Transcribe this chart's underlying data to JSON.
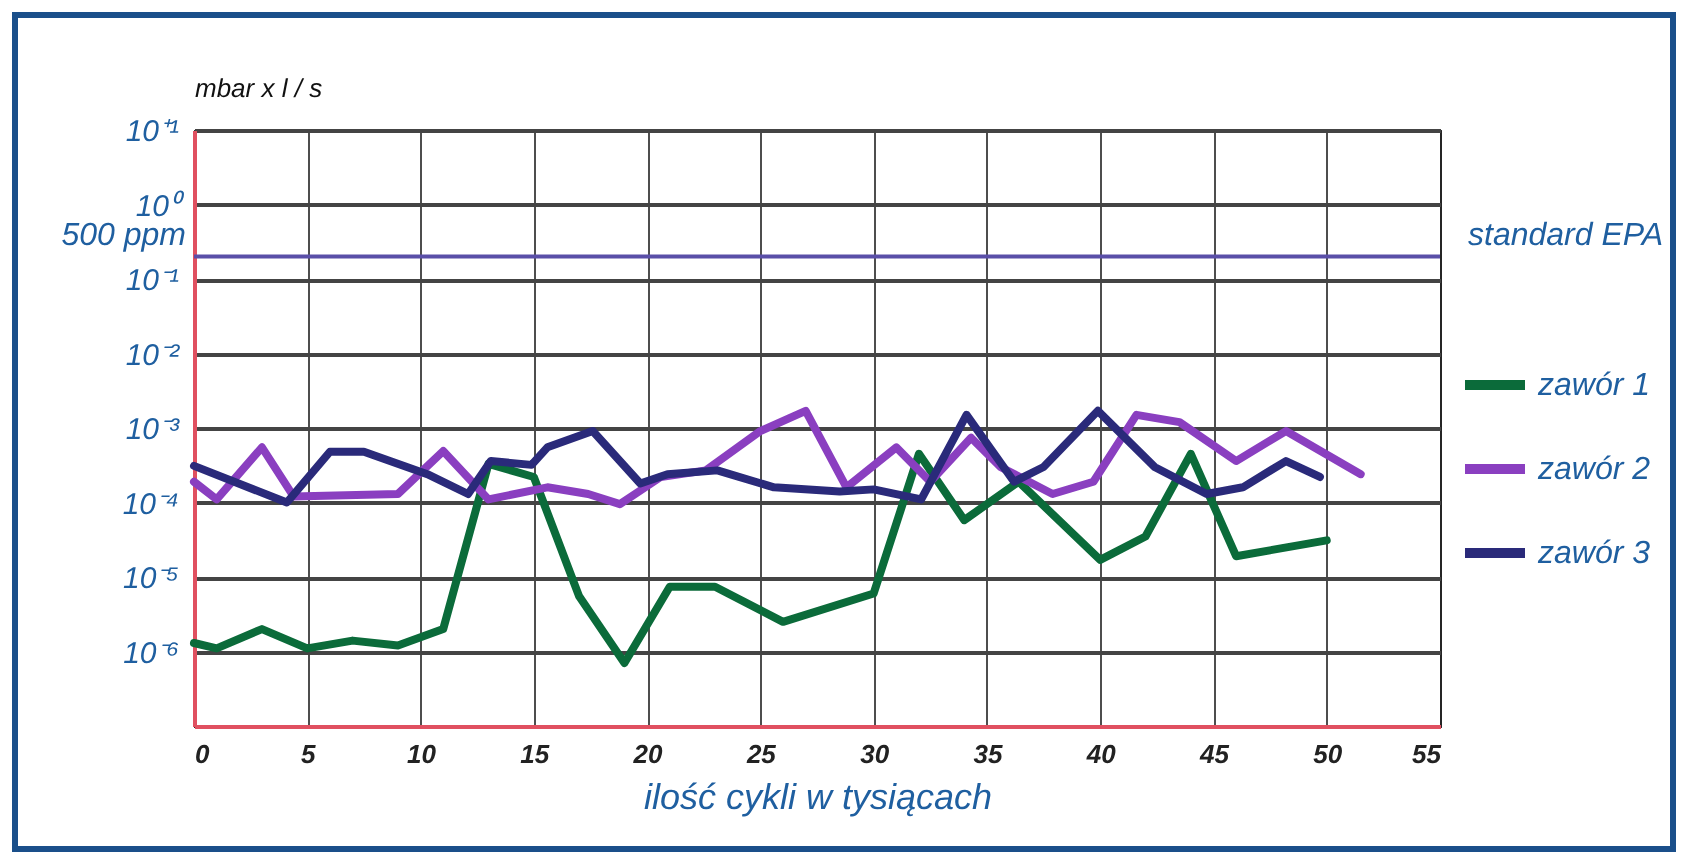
{
  "chart_data": {
    "type": "line",
    "xlabel": "ilość cykli w tysiącach",
    "ylabel": "mbar x l / s",
    "xlim": [
      0,
      55
    ],
    "xticks": [
      0,
      5,
      10,
      15,
      20,
      25,
      30,
      35,
      40,
      45,
      50,
      55
    ],
    "ylim": [
      1e-07,
      10
    ],
    "yticks": [
      {
        "value": 10,
        "label": "10⁺¹"
      },
      {
        "value": 1,
        "label": "10⁰"
      },
      {
        "value": 0.1,
        "label": "10⁻¹"
      },
      {
        "value": 0.01,
        "label": "10⁻²"
      },
      {
        "value": 0.001,
        "label": "10⁻³"
      },
      {
        "value": 0.0001,
        "label": "10⁻⁴"
      },
      {
        "value": 1e-05,
        "label": "10⁻⁵"
      },
      {
        "value": 1e-06,
        "label": "10⁻⁶"
      }
    ],
    "log": true,
    "grid": true,
    "legend": "right",
    "line_style": "solid",
    "marker": "none",
    "ref_lines": [
      {
        "axis": "y",
        "value": 0.2,
        "label": "standard EPA",
        "color": "#5a4fa8"
      }
    ],
    "annotations": [
      "500 ppm"
    ],
    "series": [
      {
        "name": "zawór 1",
        "color": "#0b6b3a",
        "x": [
          0,
          1,
          3,
          5,
          7,
          9,
          11,
          13,
          15,
          17,
          19,
          21,
          23,
          26,
          30,
          32,
          34,
          36.4,
          40,
          42,
          44,
          46,
          50
        ],
        "values": [
          1.3e-06,
          1.1e-06,
          2e-06,
          1.1e-06,
          1.4e-06,
          1.2e-06,
          2e-06,
          0.00033,
          0.00022,
          5.5e-06,
          7e-07,
          7.4e-06,
          7.4e-06,
          2.5e-06,
          6e-06,
          0.00045,
          5.8e-05,
          0.00019,
          1.7e-05,
          3.5e-05,
          0.00045,
          1.9e-05,
          3.1e-05
        ]
      },
      {
        "name": "zawór 2",
        "color": "#8a3fc0",
        "x": [
          0,
          1,
          3,
          4.4,
          9,
          11,
          13,
          15.6,
          17.4,
          18.8,
          20.6,
          22.6,
          25,
          27,
          28.8,
          31,
          32.5,
          34.3,
          35.6,
          37.9,
          39.7,
          41.6,
          43.5,
          46,
          48.2,
          51.5
        ],
        "values": [
          0.00019,
          0.00011,
          0.00055,
          0.00012,
          0.00013,
          0.00049,
          0.00011,
          0.00016,
          0.00013,
          9.5e-05,
          0.00022,
          0.00027,
          0.00091,
          0.0017,
          0.00016,
          0.00055,
          0.00019,
          0.00074,
          0.0003,
          0.00013,
          0.00019,
          0.0015,
          0.0012,
          0.00036,
          0.00091,
          0.00024
        ]
      },
      {
        "name": "zawór 3",
        "color": "#2a2a7a",
        "x": [
          0,
          4.1,
          6,
          7.5,
          10.3,
          12.1,
          13.1,
          14.9,
          15.6,
          17.6,
          19.7,
          20.9,
          23.1,
          25.6,
          28.5,
          30,
          32.1,
          34.1,
          36.2,
          37.5,
          39.9,
          42.4,
          44.7,
          46.3,
          48.2,
          49.7
        ],
        "values": [
          0.00031,
          0.0001,
          0.00048,
          0.00048,
          0.00024,
          0.00013,
          0.00036,
          0.00032,
          0.00055,
          0.00091,
          0.00018,
          0.00024,
          0.00027,
          0.00016,
          0.00014,
          0.00015,
          0.00011,
          0.0015,
          0.00019,
          0.0003,
          0.0017,
          0.0003,
          0.00013,
          0.00016,
          0.00036,
          0.00022
        ]
      }
    ]
  }
}
